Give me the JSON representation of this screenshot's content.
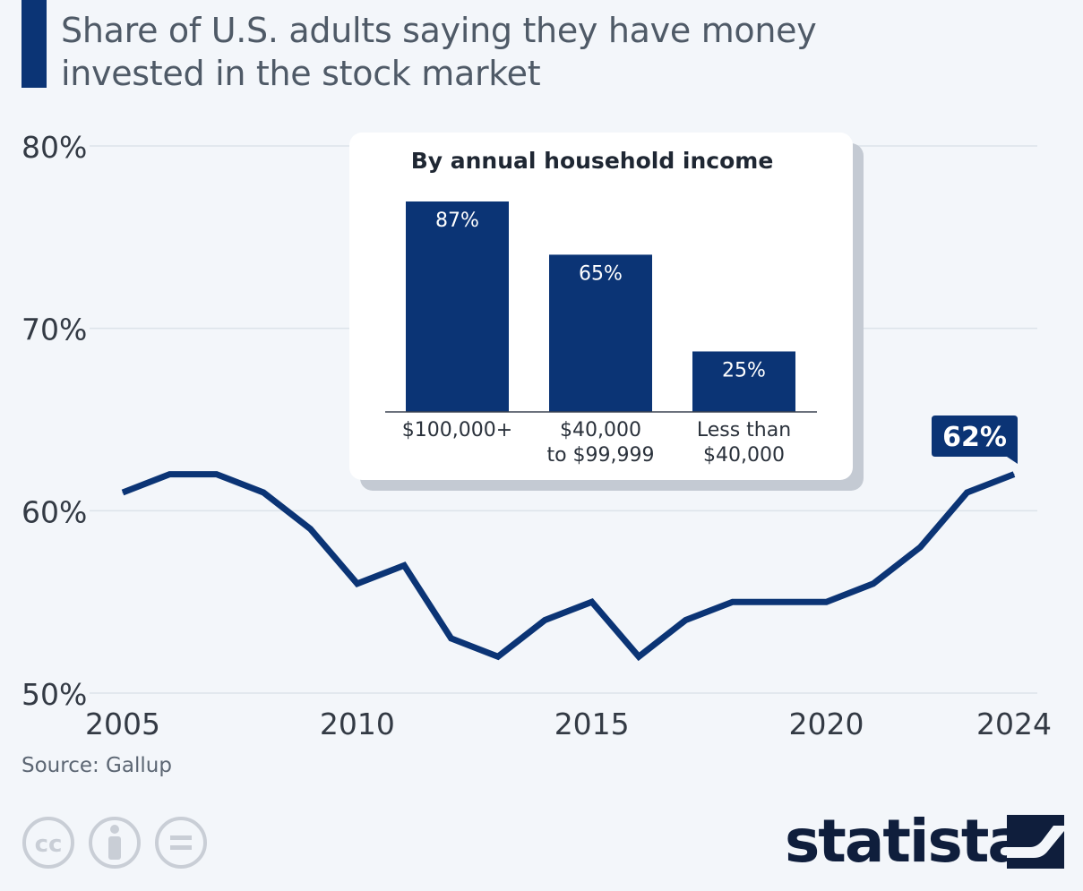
{
  "title": "Share of U.S. adults saying they have money invested in the stock market",
  "source": "Source: Gallup",
  "brand": "statista",
  "colors": {
    "line": "#0b3475",
    "bar": "#0b3475",
    "grid": "#dde3ea",
    "background": "#f3f6fa"
  },
  "icons": [
    "cc-icon",
    "attribution-icon",
    "no-derivatives-icon",
    "statista-logo-icon"
  ],
  "chart_data": [
    {
      "type": "line",
      "title": "Share of U.S. adults saying they have money invested in the stock market",
      "x": [
        2005,
        2006,
        2007,
        2008,
        2009,
        2010,
        2011,
        2012,
        2013,
        2014,
        2015,
        2016,
        2017,
        2018,
        2019,
        2020,
        2021,
        2022,
        2023,
        2024
      ],
      "values": [
        61,
        62,
        62,
        61,
        59,
        56,
        57,
        53,
        52,
        54,
        55,
        52,
        54,
        55,
        55,
        55,
        56,
        58,
        61,
        62
      ],
      "x_ticks": [
        "2005",
        "2010",
        "2015",
        "2020",
        "2024"
      ],
      "y_ticks": [
        "50%",
        "60%",
        "70%",
        "80%"
      ],
      "ylim": [
        50,
        80
      ],
      "grid": true,
      "callout": "62%"
    },
    {
      "type": "bar",
      "title": "By annual household income",
      "categories": [
        {
          "line1": "$100,000+",
          "line2": ""
        },
        {
          "line1": "$40,000",
          "line2": "to $99,999"
        },
        {
          "line1": "Less than",
          "line2": "$40,000"
        }
      ],
      "values": [
        87,
        65,
        25
      ],
      "labels": [
        "87%",
        "65%",
        "25%"
      ]
    }
  ]
}
